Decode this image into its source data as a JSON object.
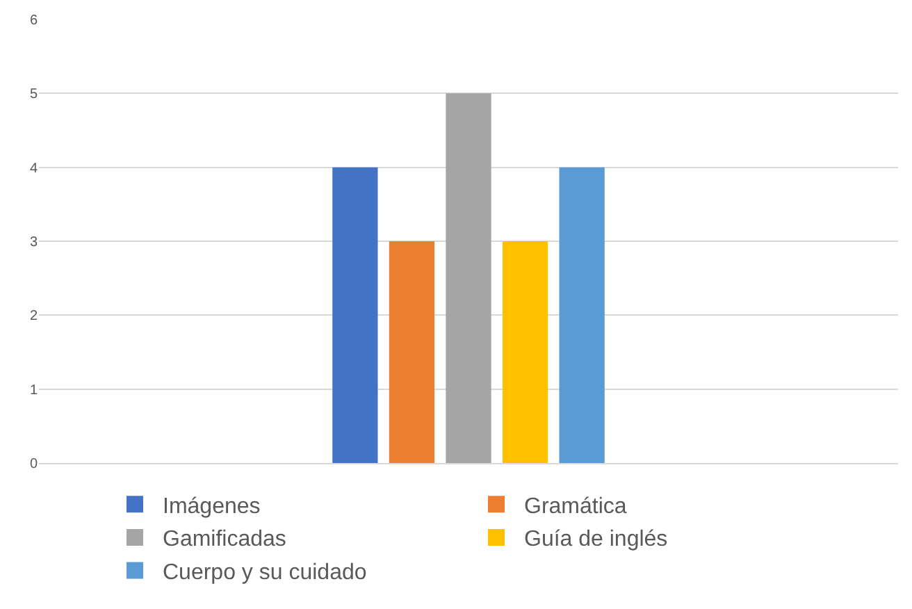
{
  "chart_data": {
    "type": "bar",
    "categories": [
      null
    ],
    "series": [
      {
        "name": "Imágenes",
        "color": "#4472c4",
        "values": [
          4
        ]
      },
      {
        "name": "Gramática",
        "color": "#ed7d31",
        "values": [
          3
        ]
      },
      {
        "name": "Gamificadas",
        "color": "#a5a5a5",
        "values": [
          5
        ]
      },
      {
        "name": "Guía de inglés",
        "color": "#ffc000",
        "values": [
          3
        ]
      },
      {
        "name": "Cuerpo y su cuidado",
        "color": "#5b9bd5",
        "values": [
          4
        ]
      }
    ],
    "ylim": [
      0,
      6
    ],
    "yticks": [
      0,
      1,
      2,
      3,
      4,
      5,
      6
    ],
    "grid": "y",
    "legend": "bottom",
    "tick_labels": "y"
  }
}
